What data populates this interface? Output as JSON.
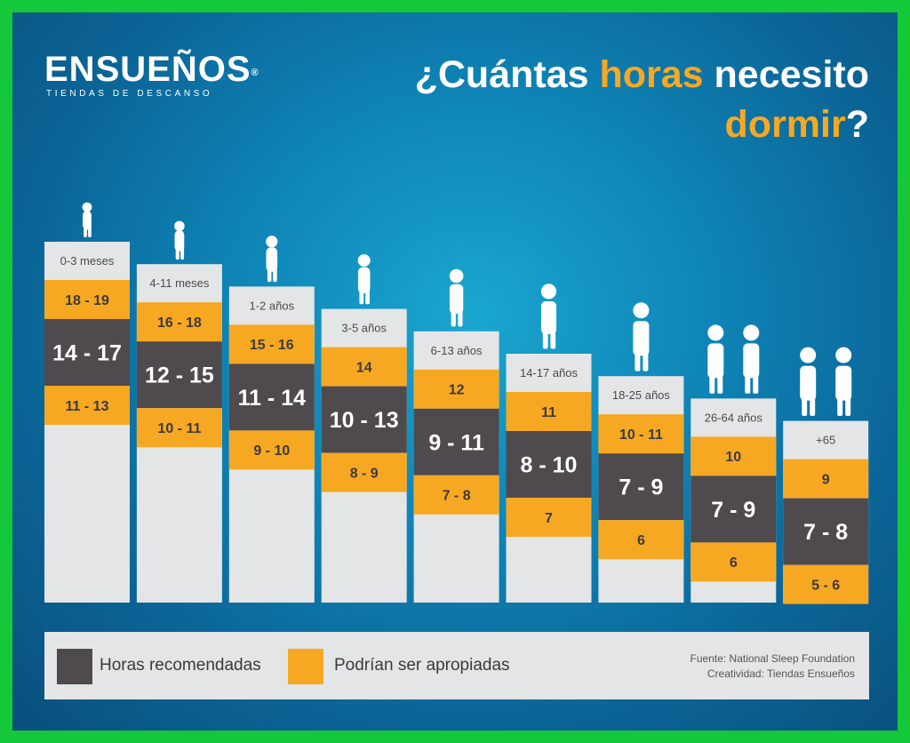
{
  "brand": {
    "name": "ENSUEÑOS",
    "registered": "®",
    "tagline": "TIENDAS DE DESCANSO"
  },
  "title": {
    "part1": "¿Cuántas ",
    "highlight1": "horas",
    "part2": " necesito",
    "highlight2": "dormir",
    "part3": "?"
  },
  "colors": {
    "recommended": "#4f4a4d",
    "appropriate": "#f7a823",
    "column": "#e4e5e6",
    "background": "#0f86b8"
  },
  "chart_data": {
    "type": "bar",
    "categories": [
      "0-3 meses",
      "4-11 meses",
      "1-2 años",
      "3-5 años",
      "6-13 años",
      "14-17 años",
      "18-25 años",
      "26-64 años",
      "+65"
    ],
    "icons": [
      "baby-icon",
      "crawling-baby-icon",
      "toddler-icon",
      "child-icon",
      "girl-icon",
      "skater-teen-icon",
      "young-adult-icon",
      "adult-couple-icon",
      "elderly-couple-icon"
    ],
    "series": [
      {
        "name": "Podrían ser apropiadas",
        "labels": [
          "11 - 13",
          "10 - 11",
          "9 - 10",
          "8 - 9",
          "7 - 8",
          "7",
          "6",
          "6",
          "5 - 6"
        ],
        "low": [
          11,
          10,
          9,
          8,
          7,
          7,
          6,
          6,
          5
        ],
        "high": [
          13,
          11,
          10,
          9,
          8,
          7,
          6,
          6,
          6
        ]
      },
      {
        "name": "Horas recomendadas",
        "labels": [
          "14 - 17",
          "12 - 15",
          "11 - 14",
          "10 - 13",
          "9 - 11",
          "8 - 10",
          "7 - 9",
          "7 - 9",
          "7 - 8"
        ],
        "low": [
          14,
          12,
          11,
          10,
          9,
          8,
          7,
          7,
          7
        ],
        "high": [
          17,
          15,
          14,
          13,
          11,
          10,
          9,
          9,
          8
        ]
      },
      {
        "name": "Podrían ser apropiadas",
        "labels": [
          "18 - 19",
          "16 - 18",
          "15 - 16",
          "14",
          "12",
          "11",
          "10 - 11",
          "10",
          "9"
        ],
        "low": [
          18,
          16,
          15,
          14,
          12,
          11,
          10,
          10,
          9
        ],
        "high": [
          19,
          18,
          16,
          14,
          12,
          11,
          11,
          10,
          9
        ]
      }
    ],
    "legend": [
      "Horas recomendadas",
      "Podrían ser apropiadas"
    ],
    "legend_position": "bottom"
  },
  "legend": {
    "recommended": "Horas recomendadas",
    "appropriate": "Podrían ser apropiadas"
  },
  "source": {
    "line1": "Fuente: National Sleep Foundation",
    "line2": "Creatividad: Tiendas Ensueños"
  }
}
